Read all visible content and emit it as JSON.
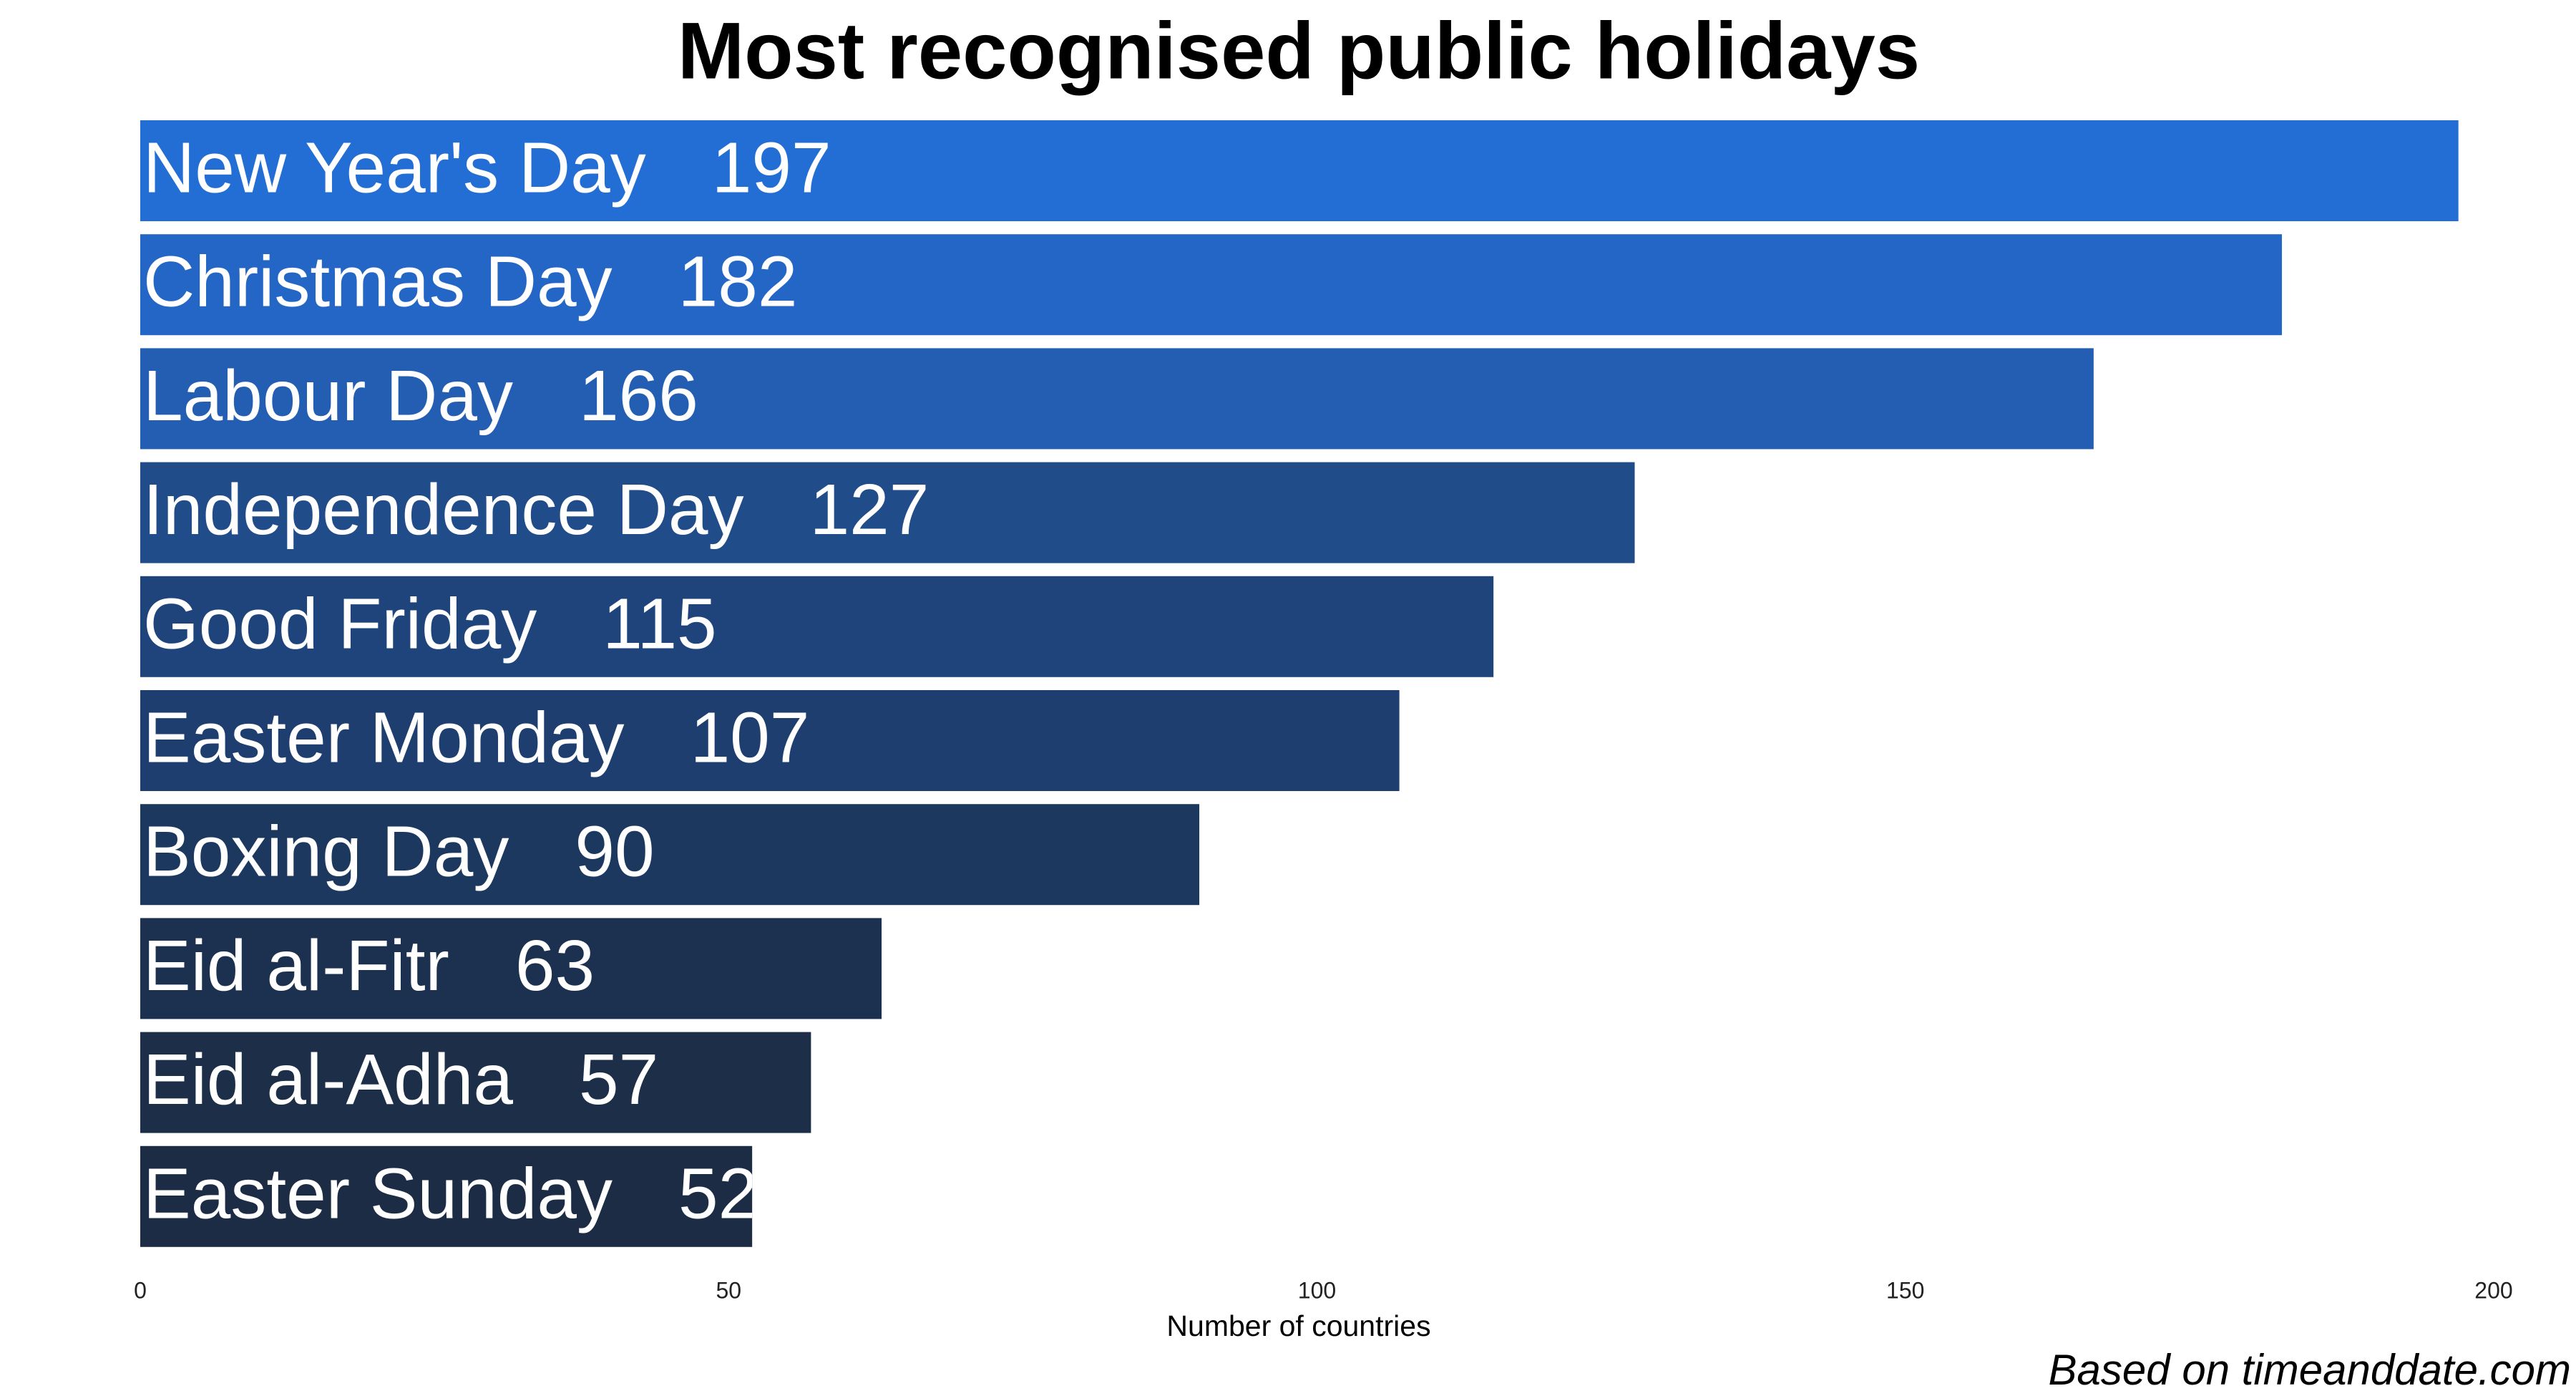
{
  "chart_data": {
    "type": "bar",
    "orientation": "horizontal",
    "title": "Most recognised public holidays",
    "categories": [
      "New Year's Day",
      "Christmas Day",
      "Labour Day",
      "Independence Day",
      "Good Friday",
      "Easter Monday",
      "Boxing Day",
      "Eid al-Fitr",
      "Eid al-Adha",
      "Easter Sunday"
    ],
    "values": [
      197,
      182,
      166,
      127,
      115,
      107,
      90,
      63,
      57,
      52
    ],
    "colors": [
      "#236ed5",
      "#2366c6",
      "#235eb3",
      "#204c8a",
      "#1f447c",
      "#1e3e70",
      "#1d385f",
      "#1c3150",
      "#1c2e48",
      "#1c2c45"
    ],
    "xlim": [
      0,
      200
    ],
    "xticks": [
      0,
      50,
      100,
      150,
      200
    ],
    "x_label": "Number of countries",
    "source": "Based on timeanddate.com",
    "grid": false
  }
}
